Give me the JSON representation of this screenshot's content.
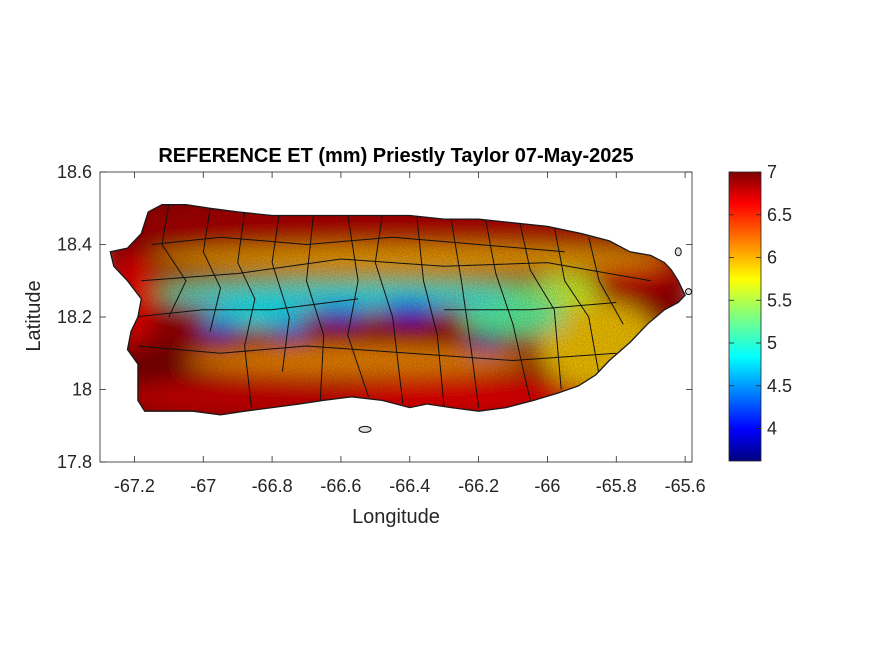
{
  "chart_data": {
    "type": "heatmap",
    "title": "REFERENCE ET (mm) Priestly Taylor 07-May-2025",
    "xlabel": "Longitude",
    "ylabel": "Latitude",
    "xlim": [
      -67.3,
      -65.58
    ],
    "ylim": [
      17.8,
      18.6
    ],
    "xticks": [
      -67.2,
      -67,
      -66.8,
      -66.6,
      -66.4,
      -66.2,
      -66,
      -65.8,
      -65.6
    ],
    "xtick_labels": [
      "-67.2",
      "-67",
      "-66.8",
      "-66.6",
      "-66.4",
      "-66.2",
      "-66",
      "-65.8",
      "-65.6"
    ],
    "yticks": [
      17.8,
      18,
      18.2,
      18.4,
      18.6
    ],
    "ytick_labels": [
      "17.8",
      "18",
      "18.2",
      "18.4",
      "18.6"
    ],
    "colorbar": {
      "colormap": "jet",
      "range": [
        3.62,
        7.0
      ],
      "ticks": [
        4,
        4.5,
        5,
        5.5,
        6,
        6.5,
        7
      ],
      "tick_labels": [
        "4",
        "4.5",
        "5",
        "5.5",
        "6",
        "6.5",
        "7"
      ]
    },
    "spatial_pattern": "Highest reference ET (6.5-7 mm) along the north coast and the southwest coast; lowest values (about 3.7-4.5 mm) over the central mountains, notably near -66.95 and -66.15 longitude; intermediate values (5.5-6 mm) over the southeast.",
    "grid": false
  }
}
